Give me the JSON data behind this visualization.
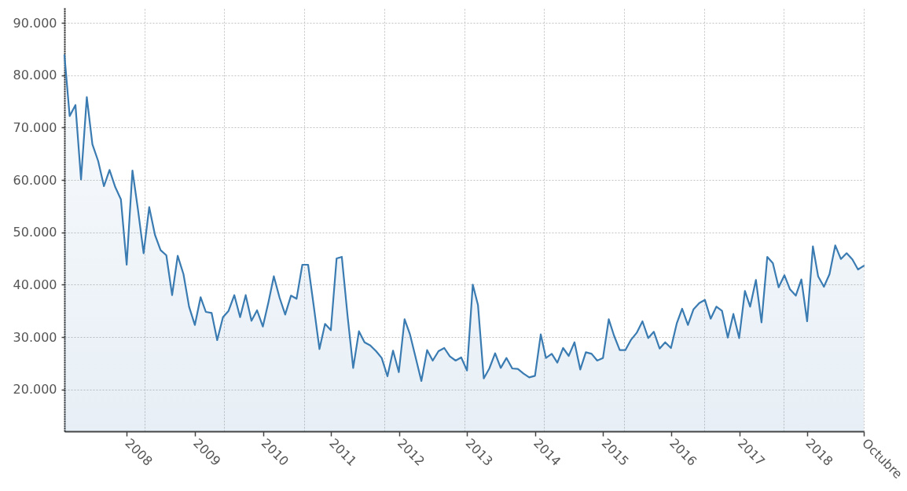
{
  "chart_data": {
    "type": "area",
    "x": [
      "2007-01-31",
      "2007-02-28",
      "2007-03-31",
      "2007-04-30",
      "2007-05-31",
      "2007-06-30",
      "2007-07-31",
      "2007-08-31",
      "2007-09-30",
      "2007-10-31",
      "2007-11-30",
      "2007-12-31",
      "2008-01-31",
      "2008-02-29",
      "2008-03-31",
      "2008-04-30",
      "2008-05-31",
      "2008-06-30",
      "2008-07-31",
      "2008-08-31",
      "2008-09-30",
      "2008-10-31",
      "2008-11-30",
      "2008-12-31",
      "2009-01-31",
      "2009-02-28",
      "2009-03-31",
      "2009-04-30",
      "2009-05-31",
      "2009-06-30",
      "2009-07-31",
      "2009-08-31",
      "2009-09-30",
      "2009-10-31",
      "2009-11-30",
      "2009-12-31",
      "2010-01-31",
      "2010-02-28",
      "2010-03-31",
      "2010-04-30",
      "2010-05-31",
      "2010-06-30",
      "2010-07-31",
      "2010-08-31",
      "2010-09-30",
      "2010-10-31",
      "2010-11-30",
      "2010-12-31",
      "2011-01-31",
      "2011-02-28",
      "2011-03-31",
      "2011-04-30",
      "2011-05-31",
      "2011-06-30",
      "2011-07-31",
      "2011-08-31",
      "2011-09-30",
      "2011-10-31",
      "2011-11-30",
      "2011-12-31",
      "2012-01-31",
      "2012-02-29",
      "2012-03-31",
      "2012-04-30",
      "2012-05-31",
      "2012-06-30",
      "2012-07-31",
      "2012-08-31",
      "2012-09-30",
      "2012-10-31",
      "2012-11-30",
      "2012-12-31",
      "2013-01-31",
      "2013-02-28",
      "2013-03-31",
      "2013-04-30",
      "2013-05-31",
      "2013-06-30",
      "2013-07-31",
      "2013-08-31",
      "2013-09-30",
      "2013-10-31",
      "2013-11-30",
      "2013-12-31",
      "2014-01-31",
      "2014-02-28",
      "2014-03-31",
      "2014-04-30",
      "2014-05-31",
      "2014-06-30",
      "2014-07-31",
      "2014-08-31",
      "2014-09-30",
      "2014-10-31",
      "2014-11-30",
      "2014-12-31",
      "2015-01-31",
      "2015-02-28",
      "2015-03-31",
      "2015-04-30",
      "2015-05-31",
      "2015-06-30",
      "2015-07-31",
      "2015-08-31",
      "2015-09-30",
      "2015-10-31",
      "2015-11-30",
      "2015-12-31",
      "2016-01-31",
      "2016-02-29",
      "2016-03-31",
      "2016-04-30",
      "2016-05-31",
      "2016-06-30",
      "2016-07-31",
      "2016-08-31",
      "2016-09-30",
      "2016-10-31",
      "2016-11-30",
      "2016-12-31",
      "2017-01-31",
      "2017-02-28",
      "2017-03-31",
      "2017-04-30",
      "2017-05-31",
      "2017-06-30",
      "2017-07-31",
      "2017-08-31",
      "2017-09-30",
      "2017-10-31",
      "2017-11-30",
      "2017-12-31",
      "2018-01-31",
      "2018-02-28",
      "2018-03-31",
      "2018-04-30",
      "2018-05-31",
      "2018-06-30",
      "2018-07-31",
      "2018-08-31",
      "2018-09-30",
      "2018-10-31"
    ],
    "series": [
      {
        "color": "#3a7bb2",
        "values": [
          83800,
          72200,
          74300,
          60100,
          75800,
          66800,
          63600,
          58800,
          61900,
          58600,
          56300,
          43800,
          61800,
          54500,
          46000,
          54800,
          49500,
          46600,
          45600,
          38000,
          45500,
          42000,
          35800,
          32300,
          37600,
          34800,
          34600,
          29400,
          33800,
          35000,
          38000,
          33800,
          38000,
          33100,
          35100,
          32000,
          36800,
          41600,
          37500,
          34300,
          37900,
          37300,
          43800,
          43800,
          36000,
          27700,
          32500,
          31300,
          45000,
          45300,
          34000,
          24100,
          31100,
          29000,
          28400,
          27300,
          26000,
          22500,
          27400,
          23300,
          33400,
          30500,
          26000,
          21600,
          27500,
          25500,
          27300,
          27900,
          26300,
          25500,
          26100,
          23600,
          40000,
          36100,
          22100,
          24000,
          26900,
          24100,
          26000,
          24000,
          23900,
          23000,
          22300,
          22600,
          30500,
          26000,
          26800,
          25100,
          27900,
          26400,
          29000,
          23800,
          27100,
          26800,
          25500,
          26000,
          33400,
          30300,
          27500,
          27500,
          29500,
          30800,
          33000,
          29800,
          31000,
          27800,
          29000,
          27900,
          32600,
          35400,
          32300,
          35300,
          36500,
          37100,
          33500,
          35800,
          35000,
          29900,
          34400,
          29800,
          38800,
          35800,
          40900,
          32800,
          45300,
          44100,
          39500,
          41800,
          39100,
          37900,
          41000,
          33000,
          47300,
          41600,
          39600,
          42000,
          47500,
          44900,
          46000,
          44800,
          42900,
          43600
        ]
      }
    ],
    "xlim": [
      "2007-01-31",
      "2018-10-31"
    ],
    "xticks": [
      {
        "value": "2008-01-01",
        "label": "2008"
      },
      {
        "value": "2009-01-01",
        "label": "2009"
      },
      {
        "value": "2010-01-01",
        "label": "2010"
      },
      {
        "value": "2011-01-01",
        "label": "2011"
      },
      {
        "value": "2012-01-01",
        "label": "2012"
      },
      {
        "value": "2013-01-01",
        "label": "2013"
      },
      {
        "value": "2014-01-01",
        "label": "2014"
      },
      {
        "value": "2015-01-01",
        "label": "2015"
      },
      {
        "value": "2016-01-01",
        "label": "2016"
      },
      {
        "value": "2017-01-01",
        "label": "2017"
      },
      {
        "value": "2018-01-01",
        "label": "2018"
      },
      {
        "value": "2018-10-31",
        "label": "Octubre"
      }
    ],
    "ylim": [
      12000,
      93000
    ],
    "yticks": [
      {
        "value": 20000,
        "label": "20.000"
      },
      {
        "value": 30000,
        "label": "30.000"
      },
      {
        "value": 40000,
        "label": "40.000"
      },
      {
        "value": 50000,
        "label": "50.000"
      },
      {
        "value": 60000,
        "label": "60.000"
      },
      {
        "value": 70000,
        "label": "70.000"
      },
      {
        "value": 80000,
        "label": "80.000"
      },
      {
        "value": 90000,
        "label": "90.000"
      }
    ],
    "grid": true
  }
}
